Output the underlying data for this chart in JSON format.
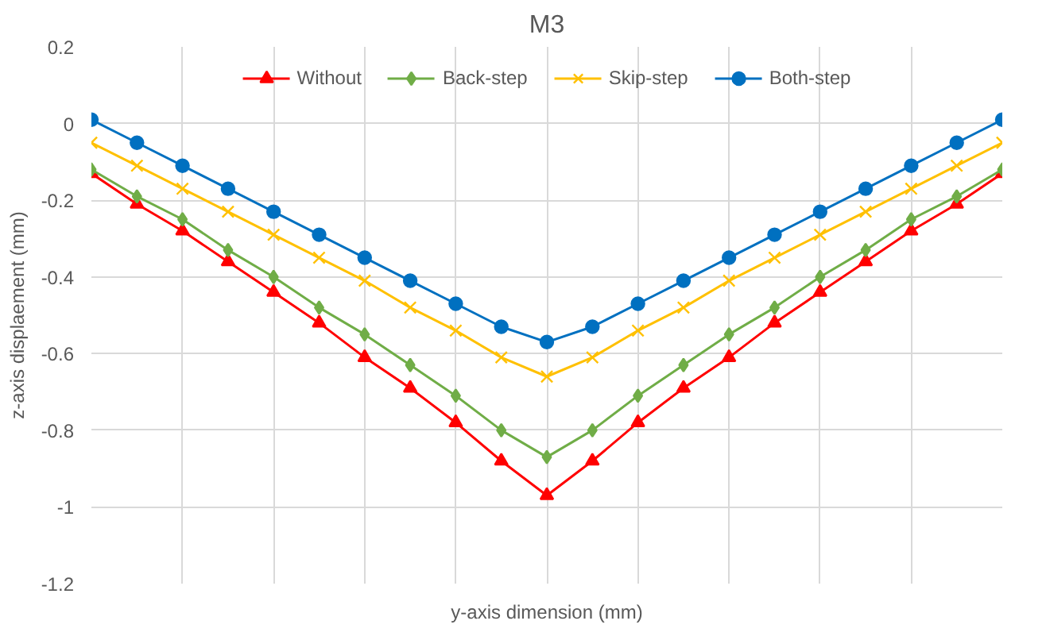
{
  "chart_data": {
    "type": "line",
    "title": "M3",
    "xlabel": "y-axis dimension (mm)",
    "ylabel": "z-axis displaement (mm)",
    "categories": [
      null,
      null,
      null,
      null,
      null,
      null,
      null,
      null,
      null,
      null,
      null,
      null,
      null,
      null,
      null,
      null,
      null,
      null,
      null,
      null,
      null
    ],
    "ylim": [
      -1.2,
      0.2
    ],
    "yticks": [
      {
        "value": -1.2,
        "label": "-1.2"
      },
      {
        "value": -1,
        "label": "-1"
      },
      {
        "value": -0.8,
        "label": "-0.8"
      },
      {
        "value": -0.6,
        "label": "-0.6"
      },
      {
        "value": -0.4,
        "label": "-0.4"
      },
      {
        "value": -0.2,
        "label": "-0.2"
      },
      0,
      0.2
    ],
    "grid": true,
    "legend": "top",
    "tick_labels": "y",
    "line_style": "solid",
    "series": [
      {
        "name": "Without",
        "color": "#ff0000",
        "marker": "triangle",
        "values": [
          -0.13,
          -0.21,
          -0.28,
          -0.36,
          -0.44,
          -0.52,
          -0.61,
          -0.69,
          -0.78,
          -0.88,
          -0.97,
          -0.88,
          -0.78,
          -0.69,
          -0.61,
          -0.52,
          -0.44,
          -0.36,
          -0.28,
          -0.21,
          -0.13
        ]
      },
      {
        "name": "Back-step",
        "color": "#70ad47",
        "marker": "diamond",
        "values": [
          -0.12,
          -0.19,
          -0.25,
          -0.33,
          -0.4,
          -0.48,
          -0.55,
          -0.63,
          -0.71,
          -0.8,
          -0.87,
          -0.8,
          -0.71,
          -0.63,
          -0.55,
          -0.48,
          -0.4,
          -0.33,
          -0.25,
          -0.19,
          -0.12
        ]
      },
      {
        "name": "Skip-step",
        "color": "#ffc000",
        "marker": "cross",
        "values": [
          -0.05,
          -0.11,
          -0.17,
          -0.23,
          -0.29,
          -0.35,
          -0.41,
          -0.48,
          -0.54,
          -0.61,
          -0.66,
          -0.61,
          -0.54,
          -0.48,
          -0.41,
          -0.35,
          -0.29,
          -0.23,
          -0.17,
          -0.11,
          -0.05
        ]
      },
      {
        "name": "Both-step",
        "color": "#0070c0",
        "marker": "circle",
        "values": [
          0.01,
          -0.05,
          -0.11,
          -0.17,
          -0.23,
          -0.29,
          -0.35,
          -0.41,
          -0.47,
          -0.53,
          -0.57,
          -0.53,
          -0.47,
          -0.41,
          -0.35,
          -0.29,
          -0.23,
          -0.17,
          -0.11,
          -0.05,
          0.01
        ]
      }
    ]
  }
}
